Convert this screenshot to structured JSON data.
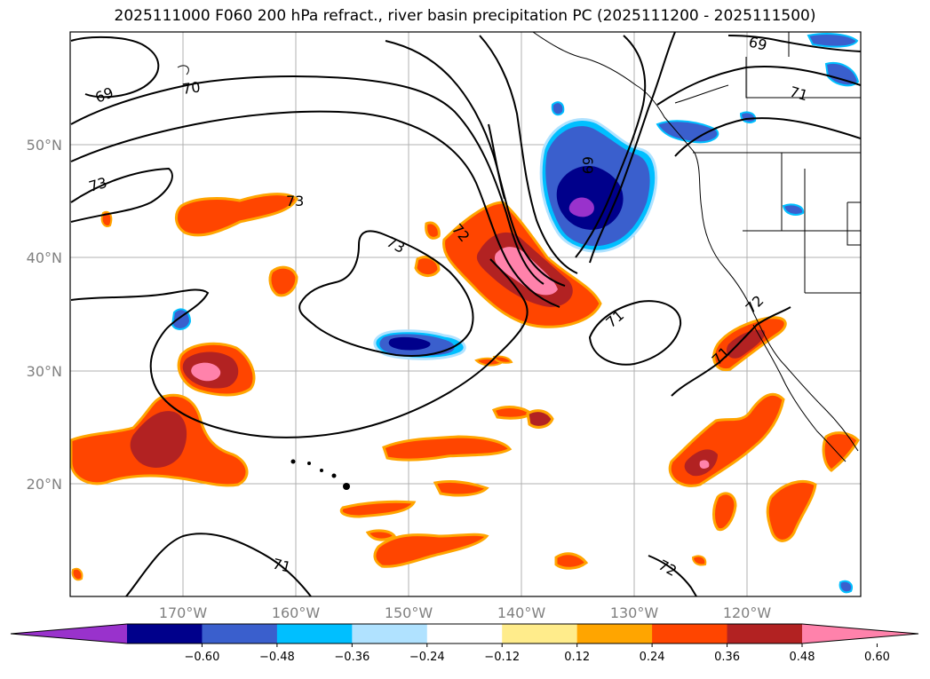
{
  "title": "2025111000 F060 200 hPa refract., river basin precipitation PC (2025111200 - 2025111500)",
  "map": {
    "lon_ticks": [
      "170°W",
      "160°W",
      "150°W",
      "140°W",
      "130°W",
      "120°W"
    ],
    "lat_ticks": [
      "50°N",
      "40°N",
      "30°N",
      "20°N"
    ],
    "contour_labels": [
      "69",
      "70",
      "73",
      "73",
      "73",
      "72",
      "69",
      "69",
      "71",
      "71",
      "71",
      "72",
      "72",
      "71"
    ]
  },
  "colorbar": {
    "labels": [
      "−0.60",
      "−0.48",
      "−0.36",
      "−0.24",
      "−0.12",
      "0.12",
      "0.24",
      "0.36",
      "0.48",
      "0.60"
    ],
    "colors": [
      "#9932cc",
      "#00008b",
      "#3a5fcd",
      "#00bfff",
      "#b0e2ff",
      "#ffffff",
      "#ffec8b",
      "#ffa500",
      "#ff4500",
      "#b22222",
      "#ff82ab"
    ]
  }
}
